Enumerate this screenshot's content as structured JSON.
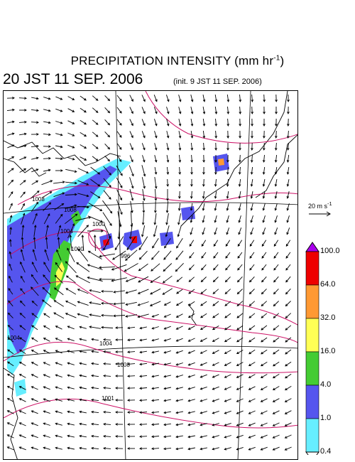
{
  "header": {
    "title": "PRECIPITATION INTENSITY (mm hr",
    "title_exp": "-1",
    "title_close": ")",
    "valid_time": "20 JST 11 SEP. 2006",
    "init_time": "(init. 9 JST 11 SEP. 2006)"
  },
  "reference_vector": {
    "label": "20 m s",
    "exp": "-1"
  },
  "colorbar": {
    "levels": [
      "100.0",
      "64.0",
      "32.0",
      "16.0",
      "4.0",
      "1.0",
      "0.4"
    ],
    "colors": [
      "#ee0000",
      "#ff9933",
      "#ffff55",
      "#44cc33",
      "#5555ee",
      "#66eeff"
    ],
    "over_color": "#aa00ee"
  },
  "isobar_labels": [
    "1008",
    "1008",
    "1004",
    "1000",
    "996",
    "1000",
    "1004",
    "1004",
    "1008",
    "1001"
  ],
  "colors": {
    "isobar": "#cc1166",
    "coast": "#000000",
    "grid": "#888888"
  }
}
